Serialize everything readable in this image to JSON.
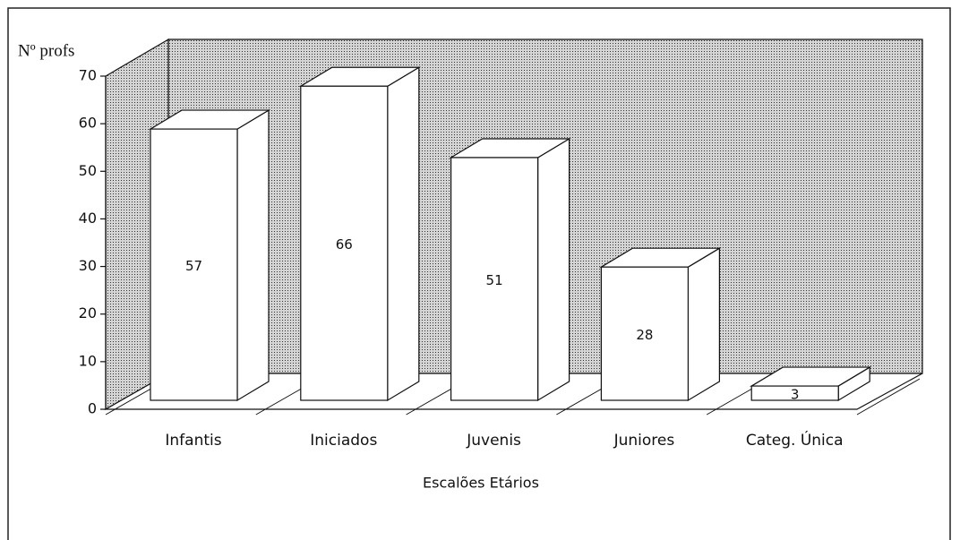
{
  "chart_data": {
    "type": "bar3d",
    "y_label": "Nº profs",
    "x_label": "Escalões Etários",
    "categories": [
      "Infantis",
      "Iniciados",
      "Juvenis",
      "Juniores",
      "Categ. Única"
    ],
    "values": [
      57,
      66,
      51,
      28,
      3
    ],
    "color": "#ffffff",
    "ylim": [
      0,
      70
    ],
    "yticks": [
      0,
      10,
      20,
      30,
      40,
      50,
      60,
      70
    ],
    "grid": false
  }
}
